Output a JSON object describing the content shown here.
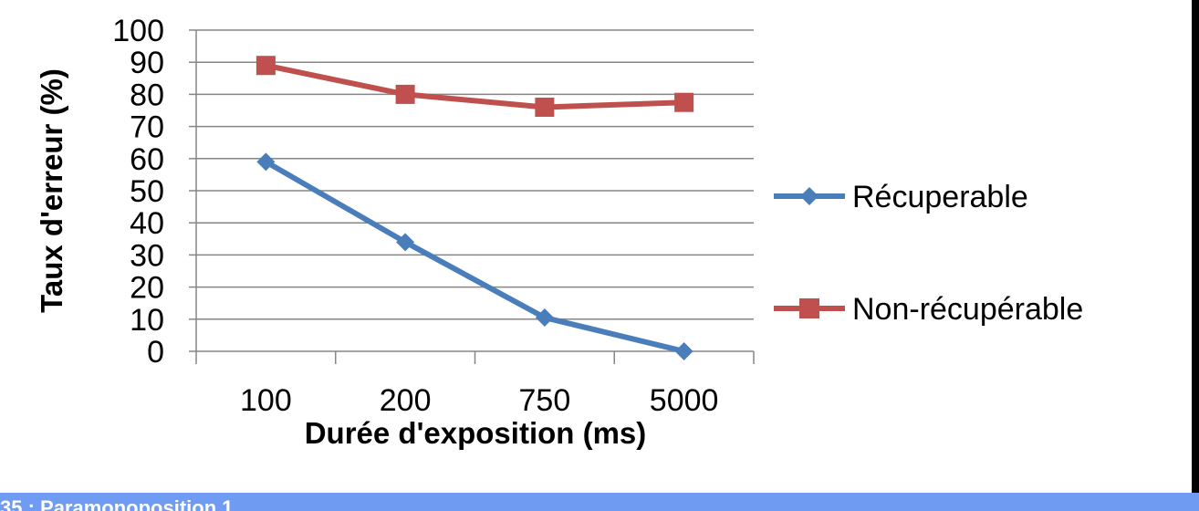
{
  "chart_data": {
    "type": "line",
    "xlabel": "Durée d'exposition (ms)",
    "ylabel": "Taux d'erreur (%)",
    "categories": [
      "100",
      "200",
      "750",
      "5000"
    ],
    "ylim": [
      0,
      100
    ],
    "yticks": [
      0,
      10,
      20,
      30,
      40,
      50,
      60,
      70,
      80,
      90,
      100
    ],
    "grid": true,
    "legend_position": "right",
    "series": [
      {
        "name": "Récuperable",
        "values": [
          59,
          34,
          10.5,
          0
        ],
        "color": "#4a7ebb",
        "marker": "diamond"
      },
      {
        "name": "Non-récupérable",
        "values": [
          89,
          80,
          76,
          77.5
        ],
        "color": "#c0504d",
        "marker": "square"
      }
    ]
  },
  "caption": {
    "text": "35 : Paramonoposition 1"
  },
  "colors": {
    "caption_bar": "#6f9cf2",
    "gridline": "#868686",
    "axis": "#868686"
  }
}
